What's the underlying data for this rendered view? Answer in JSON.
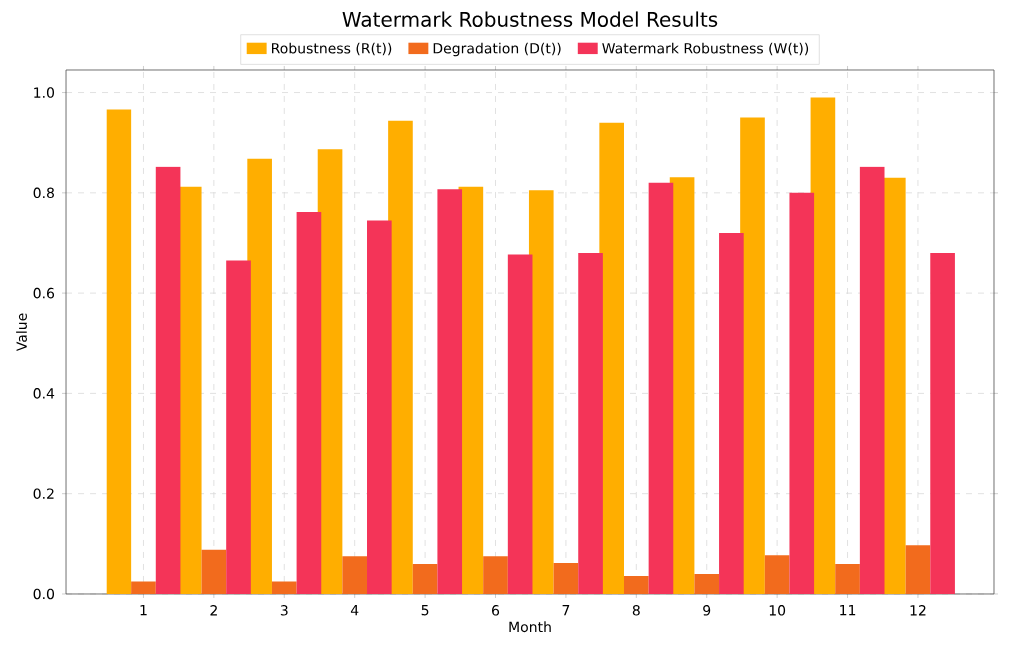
{
  "chart_data": {
    "type": "bar",
    "title": "Watermark Robustness Model Results",
    "xlabel": "Month",
    "ylabel": "Value",
    "categories": [
      "1",
      "2",
      "3",
      "4",
      "5",
      "6",
      "7",
      "8",
      "9",
      "10",
      "11",
      "12"
    ],
    "series": [
      {
        "name": "Robustness (R(t))",
        "color": "#ffae00",
        "values": [
          0.966,
          0.812,
          0.868,
          0.887,
          0.944,
          0.812,
          0.805,
          0.94,
          0.831,
          0.95,
          0.99,
          0.83
        ]
      },
      {
        "name": "Degradation (D(t))",
        "color": "#f26b1d",
        "values": [
          0.025,
          0.088,
          0.025,
          0.075,
          0.06,
          0.075,
          0.062,
          0.036,
          0.04,
          0.077,
          0.06,
          0.097
        ]
      },
      {
        "name": "Watermark Robustness (W(t))",
        "color": "#f43458",
        "values": [
          0.852,
          0.665,
          0.762,
          0.745,
          0.807,
          0.677,
          0.68,
          0.82,
          0.72,
          0.8,
          0.852,
          0.68
        ]
      }
    ],
    "ylim": [
      0,
      1.045
    ],
    "yticks": [
      {
        "value": 0,
        "label": "0.0"
      },
      0.2,
      0.4,
      0.6,
      0.8,
      {
        "value": 1,
        "label": "1.0"
      }
    ],
    "grid": true,
    "legend": "top"
  }
}
